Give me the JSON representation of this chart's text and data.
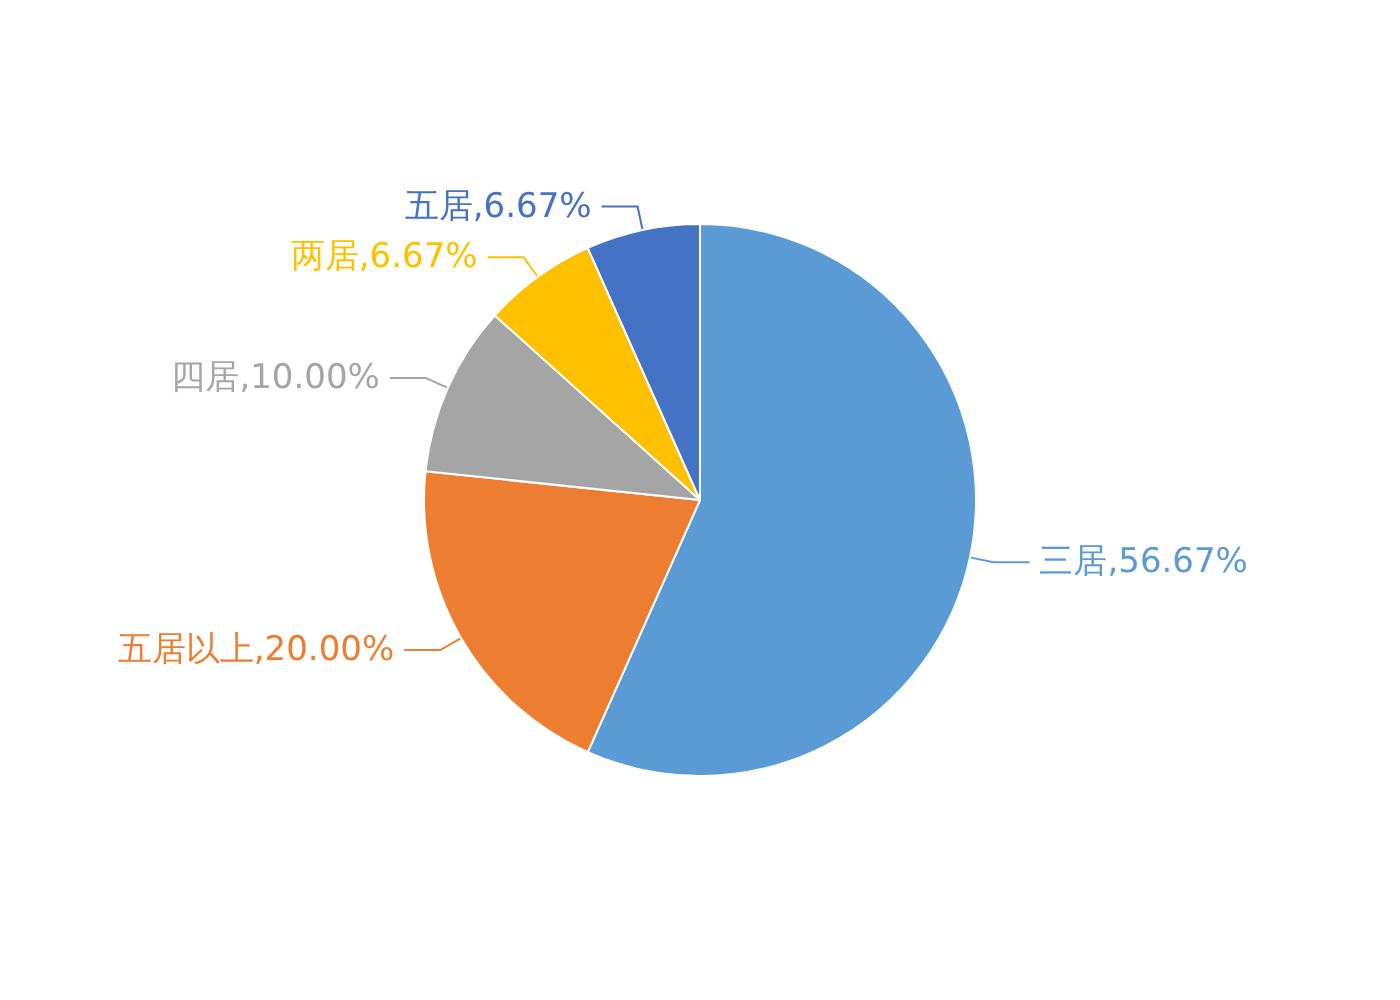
{
  "chart_data": {
    "type": "pie",
    "categories": [
      "三居",
      "五居以上",
      "四居",
      "两居",
      "五居"
    ],
    "values": [
      56.67,
      20.0,
      10.0,
      6.67,
      6.67
    ],
    "value_labels": [
      "56.67%",
      "20.00%",
      "10.00%",
      "6.67%",
      "6.67%"
    ],
    "colors": [
      "#5b9bd5",
      "#ed7d31",
      "#a5a5a5",
      "#ffc000",
      "#4472c4"
    ],
    "legend": false
  }
}
